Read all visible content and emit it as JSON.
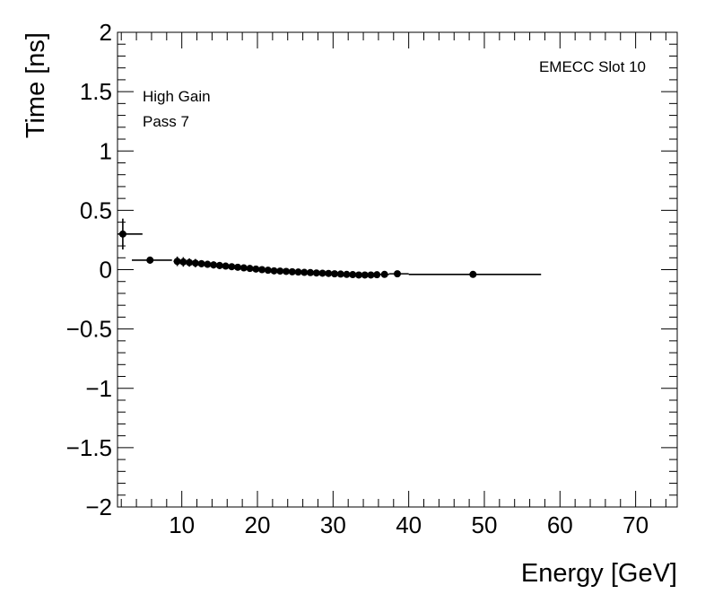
{
  "chart_data": {
    "type": "scatter",
    "xlabel": "Energy [GeV]",
    "ylabel": "Time [ns]",
    "xlim": [
      1.5,
      75.5
    ],
    "ylim": [
      -2,
      2
    ],
    "x_ticks": [
      10,
      20,
      30,
      40,
      50,
      60,
      70
    ],
    "y_ticks": [
      -2,
      -1.5,
      -1,
      -0.5,
      0,
      0.5,
      1,
      1.5,
      2
    ],
    "x_tick_labels": [
      "10",
      "20",
      "30",
      "40",
      "50",
      "60",
      "70"
    ],
    "y_tick_labels": [
      "−2",
      "−1.5",
      "−1",
      "−0.5",
      "0",
      "0.5",
      "1",
      "1.5",
      "2"
    ],
    "annotations": {
      "top_right": "EMECC Slot 10",
      "line1": "High Gain",
      "line2": "Pass 7"
    },
    "grid": false,
    "series": [
      {
        "points": [
          {
            "x": 2.2,
            "y": 0.3,
            "xerr_low": 0.7,
            "xerr_high": 2.6,
            "yerr": 0.13
          },
          {
            "x": 5.8,
            "y": 0.08,
            "xerr_low": 2.4,
            "xerr_high": 2.9,
            "yerr": 0.03
          },
          {
            "x": 9.4,
            "y": 0.07,
            "xerr_low": 0.5,
            "xerr_high": 0.5,
            "yerr": 0.04
          },
          {
            "x": 10.2,
            "y": 0.065,
            "xerr_low": 0.4,
            "xerr_high": 0.4,
            "yerr": 0.04
          },
          {
            "x": 11.0,
            "y": 0.06,
            "xerr_low": 0.4,
            "xerr_high": 0.4,
            "yerr": 0.035
          },
          {
            "x": 11.8,
            "y": 0.055,
            "xerr_low": 0.4,
            "xerr_high": 0.4,
            "yerr": 0.035
          },
          {
            "x": 12.6,
            "y": 0.05,
            "xerr_low": 0.4,
            "xerr_high": 0.4,
            "yerr": 0.03
          },
          {
            "x": 13.4,
            "y": 0.045,
            "xerr_low": 0.4,
            "xerr_high": 0.4,
            "yerr": 0.03
          },
          {
            "x": 14.2,
            "y": 0.04,
            "xerr_low": 0.4,
            "xerr_high": 0.4,
            "yerr": 0.03
          },
          {
            "x": 15.0,
            "y": 0.035,
            "xerr_low": 0.4,
            "xerr_high": 0.4,
            "yerr": 0.03
          },
          {
            "x": 15.8,
            "y": 0.03,
            "xerr_low": 0.4,
            "xerr_high": 0.4,
            "yerr": 0.025
          },
          {
            "x": 16.6,
            "y": 0.025,
            "xerr_low": 0.4,
            "xerr_high": 0.4,
            "yerr": 0.025
          },
          {
            "x": 17.4,
            "y": 0.02,
            "xerr_low": 0.4,
            "xerr_high": 0.4,
            "yerr": 0.025
          },
          {
            "x": 18.2,
            "y": 0.015,
            "xerr_low": 0.4,
            "xerr_high": 0.4,
            "yerr": 0.025
          },
          {
            "x": 19.0,
            "y": 0.01,
            "xerr_low": 0.4,
            "xerr_high": 0.4,
            "yerr": 0.025
          },
          {
            "x": 19.8,
            "y": 0.005,
            "xerr_low": 0.4,
            "xerr_high": 0.4,
            "yerr": 0.025
          },
          {
            "x": 20.6,
            "y": 0.0,
            "xerr_low": 0.4,
            "xerr_high": 0.4,
            "yerr": 0.025
          },
          {
            "x": 21.4,
            "y": -0.005,
            "xerr_low": 0.4,
            "xerr_high": 0.4,
            "yerr": 0.025
          },
          {
            "x": 22.2,
            "y": -0.01,
            "xerr_low": 0.4,
            "xerr_high": 0.4,
            "yerr": 0.025
          },
          {
            "x": 23.0,
            "y": -0.012,
            "xerr_low": 0.4,
            "xerr_high": 0.4,
            "yerr": 0.025
          },
          {
            "x": 23.8,
            "y": -0.015,
            "xerr_low": 0.4,
            "xerr_high": 0.4,
            "yerr": 0.025
          },
          {
            "x": 24.6,
            "y": -0.018,
            "xerr_low": 0.4,
            "xerr_high": 0.4,
            "yerr": 0.025
          },
          {
            "x": 25.4,
            "y": -0.02,
            "xerr_low": 0.4,
            "xerr_high": 0.4,
            "yerr": 0.025
          },
          {
            "x": 26.2,
            "y": -0.023,
            "xerr_low": 0.4,
            "xerr_high": 0.4,
            "yerr": 0.025
          },
          {
            "x": 27.0,
            "y": -0.025,
            "xerr_low": 0.4,
            "xerr_high": 0.4,
            "yerr": 0.025
          },
          {
            "x": 27.8,
            "y": -0.028,
            "xerr_low": 0.4,
            "xerr_high": 0.4,
            "yerr": 0.025
          },
          {
            "x": 28.6,
            "y": -0.03,
            "xerr_low": 0.4,
            "xerr_high": 0.4,
            "yerr": 0.025
          },
          {
            "x": 29.4,
            "y": -0.032,
            "xerr_low": 0.4,
            "xerr_high": 0.4,
            "yerr": 0.025
          },
          {
            "x": 30.2,
            "y": -0.035,
            "xerr_low": 0.4,
            "xerr_high": 0.4,
            "yerr": 0.025
          },
          {
            "x": 31.0,
            "y": -0.037,
            "xerr_low": 0.4,
            "xerr_high": 0.4,
            "yerr": 0.025
          },
          {
            "x": 31.8,
            "y": -0.04,
            "xerr_low": 0.4,
            "xerr_high": 0.4,
            "yerr": 0.025
          },
          {
            "x": 32.6,
            "y": -0.042,
            "xerr_low": 0.4,
            "xerr_high": 0.4,
            "yerr": 0.025
          },
          {
            "x": 33.4,
            "y": -0.045,
            "xerr_low": 0.4,
            "xerr_high": 0.4,
            "yerr": 0.025
          },
          {
            "x": 34.2,
            "y": -0.045,
            "xerr_low": 0.4,
            "xerr_high": 0.4,
            "yerr": 0.025
          },
          {
            "x": 35.0,
            "y": -0.045,
            "xerr_low": 0.4,
            "xerr_high": 0.4,
            "yerr": 0.025
          },
          {
            "x": 35.8,
            "y": -0.043,
            "xerr_low": 0.4,
            "xerr_high": 0.4,
            "yerr": 0.025
          },
          {
            "x": 36.8,
            "y": -0.04,
            "xerr_low": 0.6,
            "xerr_high": 0.6,
            "yerr": 0.025
          },
          {
            "x": 38.5,
            "y": -0.035,
            "xerr_low": 1.1,
            "xerr_high": 1.5,
            "yerr": 0.02
          },
          {
            "x": 48.5,
            "y": -0.04,
            "xerr_low": 8.5,
            "xerr_high": 9.0,
            "yerr": 0.015
          }
        ]
      }
    ]
  }
}
